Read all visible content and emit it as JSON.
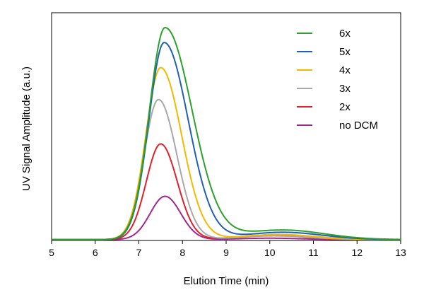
{
  "chart_data": {
    "type": "line",
    "title": "",
    "xlabel": "Elution Time (min)",
    "ylabel": "UV Signal Amplitude (a.u.)",
    "xlim": [
      5,
      13
    ],
    "ylim": [
      0,
      1.0
    ],
    "xticks": [
      "5",
      "6",
      "7",
      "8",
      "9",
      "10",
      "11",
      "12",
      "13"
    ],
    "grid": false,
    "legend_position": "top-right",
    "series": [
      {
        "name": "6x",
        "color": "#2ca02c",
        "peak_time": 7.6,
        "peak_amp": 0.93,
        "rise_width": 0.36,
        "fall_width": 0.62,
        "tail_amp": 0.042,
        "tail_center": 10.3,
        "tail_width": 0.95
      },
      {
        "name": "5x",
        "color": "#1f5fb4",
        "peak_time": 7.58,
        "peak_amp": 0.865,
        "rise_width": 0.35,
        "fall_width": 0.55,
        "tail_amp": 0.032,
        "tail_center": 10.3,
        "tail_width": 0.9
      },
      {
        "name": "4x",
        "color": "#f5b800",
        "peak_time": 7.5,
        "peak_amp": 0.755,
        "rise_width": 0.34,
        "fall_width": 0.48,
        "tail_amp": 0.022,
        "tail_center": 10.2,
        "tail_width": 0.85
      },
      {
        "name": "3x",
        "color": "#a8a8a8",
        "peak_time": 7.45,
        "peak_amp": 0.615,
        "rise_width": 0.33,
        "fall_width": 0.42,
        "tail_amp": 0.016,
        "tail_center": 10.1,
        "tail_width": 0.8
      },
      {
        "name": "2x",
        "color": "#e0202a",
        "peak_time": 7.5,
        "peak_amp": 0.42,
        "rise_width": 0.33,
        "fall_width": 0.38,
        "tail_amp": 0.02,
        "tail_center": 10.0,
        "tail_width": 0.7
      },
      {
        "name": "no DCM",
        "color": "#a0288c",
        "peak_time": 7.6,
        "peak_amp": 0.19,
        "rise_width": 0.34,
        "fall_width": 0.36,
        "tail_amp": 0.006,
        "tail_center": 10.0,
        "tail_width": 0.7
      }
    ]
  }
}
